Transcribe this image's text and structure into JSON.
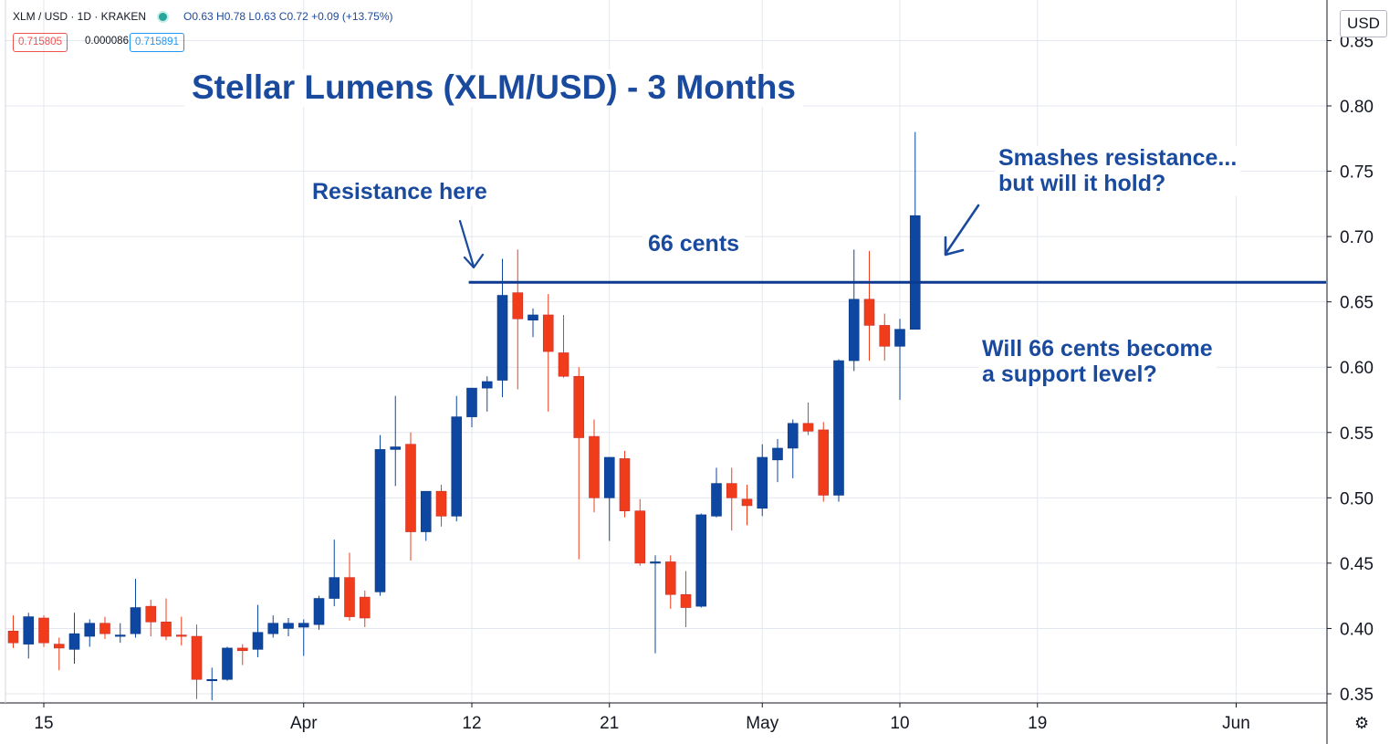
{
  "header": {
    "symbol_line": "XLM / USD · 1D · KRAKEN",
    "ohlc": "O0.63 H0.78 L0.63 C0.72 +0.09 (+13.75%)",
    "bid": "0.715805",
    "spread": "0.000086",
    "ask": "0.715891"
  },
  "currency_button": "USD",
  "settings_icon": "gear-icon",
  "annotations": {
    "title": "Stellar Lumens (XLM/USD) - 3 Months",
    "resistance_here": "Resistance here",
    "sixty_six_cents": "66 cents",
    "smashes": "Smashes resistance...\nbut will it hold?",
    "support_question": "Will 66 cents become\na support level?"
  },
  "chart_data": {
    "type": "candlestick",
    "title": "Stellar Lumens (XLM/USD) - 3 Months",
    "y_ticks": [
      "0.35",
      "0.40",
      "0.45",
      "0.50",
      "0.55",
      "0.60",
      "0.65",
      "0.70",
      "0.75",
      "0.80",
      "0.85"
    ],
    "ylim": [
      0.345,
      0.87
    ],
    "x_ticks": [
      {
        "label": "15",
        "day": 0
      },
      {
        "label": "Apr",
        "day": 17
      },
      {
        "label": "12",
        "day": 28
      },
      {
        "label": "21",
        "day": 37
      },
      {
        "label": "May",
        "day": 47
      },
      {
        "label": "10",
        "day": 56
      },
      {
        "label": "19",
        "day": 65
      },
      {
        "label": "Jun",
        "day": 78
      }
    ],
    "x_range_days": [
      -2.5,
      83.5
    ],
    "resistance_level": 0.665,
    "resistance_start_day": 27.8,
    "grid": true,
    "colors": {
      "up": "#0d47a1",
      "down": "#f03c1a",
      "annotation": "#1a4a9e",
      "grid": "#e3e7ee"
    },
    "candles": [
      {
        "day": -2,
        "o": 0.398,
        "h": 0.41,
        "l": 0.385,
        "c": 0.389
      },
      {
        "day": -1,
        "o": 0.388,
        "h": 0.412,
        "l": 0.377,
        "c": 0.409
      },
      {
        "day": 0,
        "o": 0.408,
        "h": 0.41,
        "l": 0.386,
        "c": 0.389
      },
      {
        "day": 1,
        "o": 0.388,
        "h": 0.393,
        "l": 0.368,
        "c": 0.385
      },
      {
        "day": 2,
        "o": 0.384,
        "h": 0.412,
        "l": 0.373,
        "c": 0.396
      },
      {
        "day": 3,
        "o": 0.394,
        "h": 0.407,
        "l": 0.386,
        "c": 0.404
      },
      {
        "day": 4,
        "o": 0.404,
        "h": 0.409,
        "l": 0.392,
        "c": 0.396
      },
      {
        "day": 5,
        "o": 0.395,
        "h": 0.404,
        "l": 0.389,
        "c": 0.395
      },
      {
        "day": 6,
        "o": 0.396,
        "h": 0.438,
        "l": 0.393,
        "c": 0.416
      },
      {
        "day": 7,
        "o": 0.417,
        "h": 0.422,
        "l": 0.394,
        "c": 0.405
      },
      {
        "day": 8,
        "o": 0.405,
        "h": 0.423,
        "l": 0.391,
        "c": 0.394
      },
      {
        "day": 9,
        "o": 0.395,
        "h": 0.409,
        "l": 0.387,
        "c": 0.394
      },
      {
        "day": 10,
        "o": 0.394,
        "h": 0.403,
        "l": 0.346,
        "c": 0.361
      },
      {
        "day": 11,
        "o": 0.361,
        "h": 0.37,
        "l": 0.345,
        "c": 0.361
      },
      {
        "day": 12,
        "o": 0.361,
        "h": 0.386,
        "l": 0.36,
        "c": 0.385
      },
      {
        "day": 13,
        "o": 0.385,
        "h": 0.388,
        "l": 0.372,
        "c": 0.383
      },
      {
        "day": 14,
        "o": 0.384,
        "h": 0.418,
        "l": 0.378,
        "c": 0.397
      },
      {
        "day": 15,
        "o": 0.396,
        "h": 0.41,
        "l": 0.393,
        "c": 0.404
      },
      {
        "day": 16,
        "o": 0.4,
        "h": 0.408,
        "l": 0.394,
        "c": 0.404
      },
      {
        "day": 17,
        "o": 0.401,
        "h": 0.407,
        "l": 0.379,
        "c": 0.404
      },
      {
        "day": 18,
        "o": 0.403,
        "h": 0.425,
        "l": 0.399,
        "c": 0.423
      },
      {
        "day": 19,
        "o": 0.423,
        "h": 0.468,
        "l": 0.417,
        "c": 0.439
      },
      {
        "day": 20,
        "o": 0.439,
        "h": 0.458,
        "l": 0.406,
        "c": 0.409
      },
      {
        "day": 21,
        "o": 0.424,
        "h": 0.429,
        "l": 0.401,
        "c": 0.408
      },
      {
        "day": 22,
        "o": 0.428,
        "h": 0.548,
        "l": 0.425,
        "c": 0.537
      },
      {
        "day": 23,
        "o": 0.537,
        "h": 0.578,
        "l": 0.509,
        "c": 0.539
      },
      {
        "day": 24,
        "o": 0.541,
        "h": 0.55,
        "l": 0.452,
        "c": 0.474
      },
      {
        "day": 25,
        "o": 0.474,
        "h": 0.505,
        "l": 0.467,
        "c": 0.505
      },
      {
        "day": 26,
        "o": 0.505,
        "h": 0.51,
        "l": 0.478,
        "c": 0.486
      },
      {
        "day": 27,
        "o": 0.486,
        "h": 0.578,
        "l": 0.482,
        "c": 0.562
      },
      {
        "day": 28,
        "o": 0.562,
        "h": 0.584,
        "l": 0.554,
        "c": 0.584
      },
      {
        "day": 29,
        "o": 0.584,
        "h": 0.593,
        "l": 0.566,
        "c": 0.589
      },
      {
        "day": 30,
        "o": 0.59,
        "h": 0.683,
        "l": 0.577,
        "c": 0.655
      },
      {
        "day": 31,
        "o": 0.657,
        "h": 0.69,
        "l": 0.583,
        "c": 0.637
      },
      {
        "day": 32,
        "o": 0.636,
        "h": 0.645,
        "l": 0.623,
        "c": 0.64
      },
      {
        "day": 33,
        "o": 0.64,
        "h": 0.656,
        "l": 0.566,
        "c": 0.612
      },
      {
        "day": 34,
        "o": 0.611,
        "h": 0.64,
        "l": 0.592,
        "c": 0.593
      },
      {
        "day": 35,
        "o": 0.593,
        "h": 0.6,
        "l": 0.453,
        "c": 0.546
      },
      {
        "day": 36,
        "o": 0.547,
        "h": 0.56,
        "l": 0.489,
        "c": 0.5
      },
      {
        "day": 37,
        "o": 0.5,
        "h": 0.531,
        "l": 0.467,
        "c": 0.531
      },
      {
        "day": 38,
        "o": 0.53,
        "h": 0.536,
        "l": 0.485,
        "c": 0.49
      },
      {
        "day": 39,
        "o": 0.49,
        "h": 0.499,
        "l": 0.448,
        "c": 0.45
      },
      {
        "day": 40,
        "o": 0.45,
        "h": 0.456,
        "l": 0.381,
        "c": 0.451
      },
      {
        "day": 41,
        "o": 0.451,
        "h": 0.456,
        "l": 0.415,
        "c": 0.426
      },
      {
        "day": 42,
        "o": 0.426,
        "h": 0.444,
        "l": 0.401,
        "c": 0.416
      },
      {
        "day": 43,
        "o": 0.417,
        "h": 0.488,
        "l": 0.416,
        "c": 0.487
      },
      {
        "day": 44,
        "o": 0.486,
        "h": 0.523,
        "l": 0.485,
        "c": 0.511
      },
      {
        "day": 45,
        "o": 0.511,
        "h": 0.523,
        "l": 0.475,
        "c": 0.5
      },
      {
        "day": 46,
        "o": 0.499,
        "h": 0.51,
        "l": 0.479,
        "c": 0.494
      },
      {
        "day": 47,
        "o": 0.492,
        "h": 0.541,
        "l": 0.486,
        "c": 0.531
      },
      {
        "day": 48,
        "o": 0.529,
        "h": 0.545,
        "l": 0.512,
        "c": 0.538
      },
      {
        "day": 49,
        "o": 0.538,
        "h": 0.56,
        "l": 0.515,
        "c": 0.557
      },
      {
        "day": 50,
        "o": 0.557,
        "h": 0.573,
        "l": 0.548,
        "c": 0.551
      },
      {
        "day": 51,
        "o": 0.552,
        "h": 0.558,
        "l": 0.497,
        "c": 0.502
      },
      {
        "day": 52,
        "o": 0.502,
        "h": 0.606,
        "l": 0.497,
        "c": 0.605
      },
      {
        "day": 53,
        "o": 0.605,
        "h": 0.69,
        "l": 0.597,
        "c": 0.652
      },
      {
        "day": 54,
        "o": 0.652,
        "h": 0.689,
        "l": 0.605,
        "c": 0.632
      },
      {
        "day": 55,
        "o": 0.632,
        "h": 0.641,
        "l": 0.605,
        "c": 0.616
      },
      {
        "day": 56,
        "o": 0.616,
        "h": 0.637,
        "l": 0.575,
        "c": 0.629
      },
      {
        "day": 57,
        "o": 0.629,
        "h": 0.78,
        "l": 0.629,
        "c": 0.716
      }
    ]
  }
}
